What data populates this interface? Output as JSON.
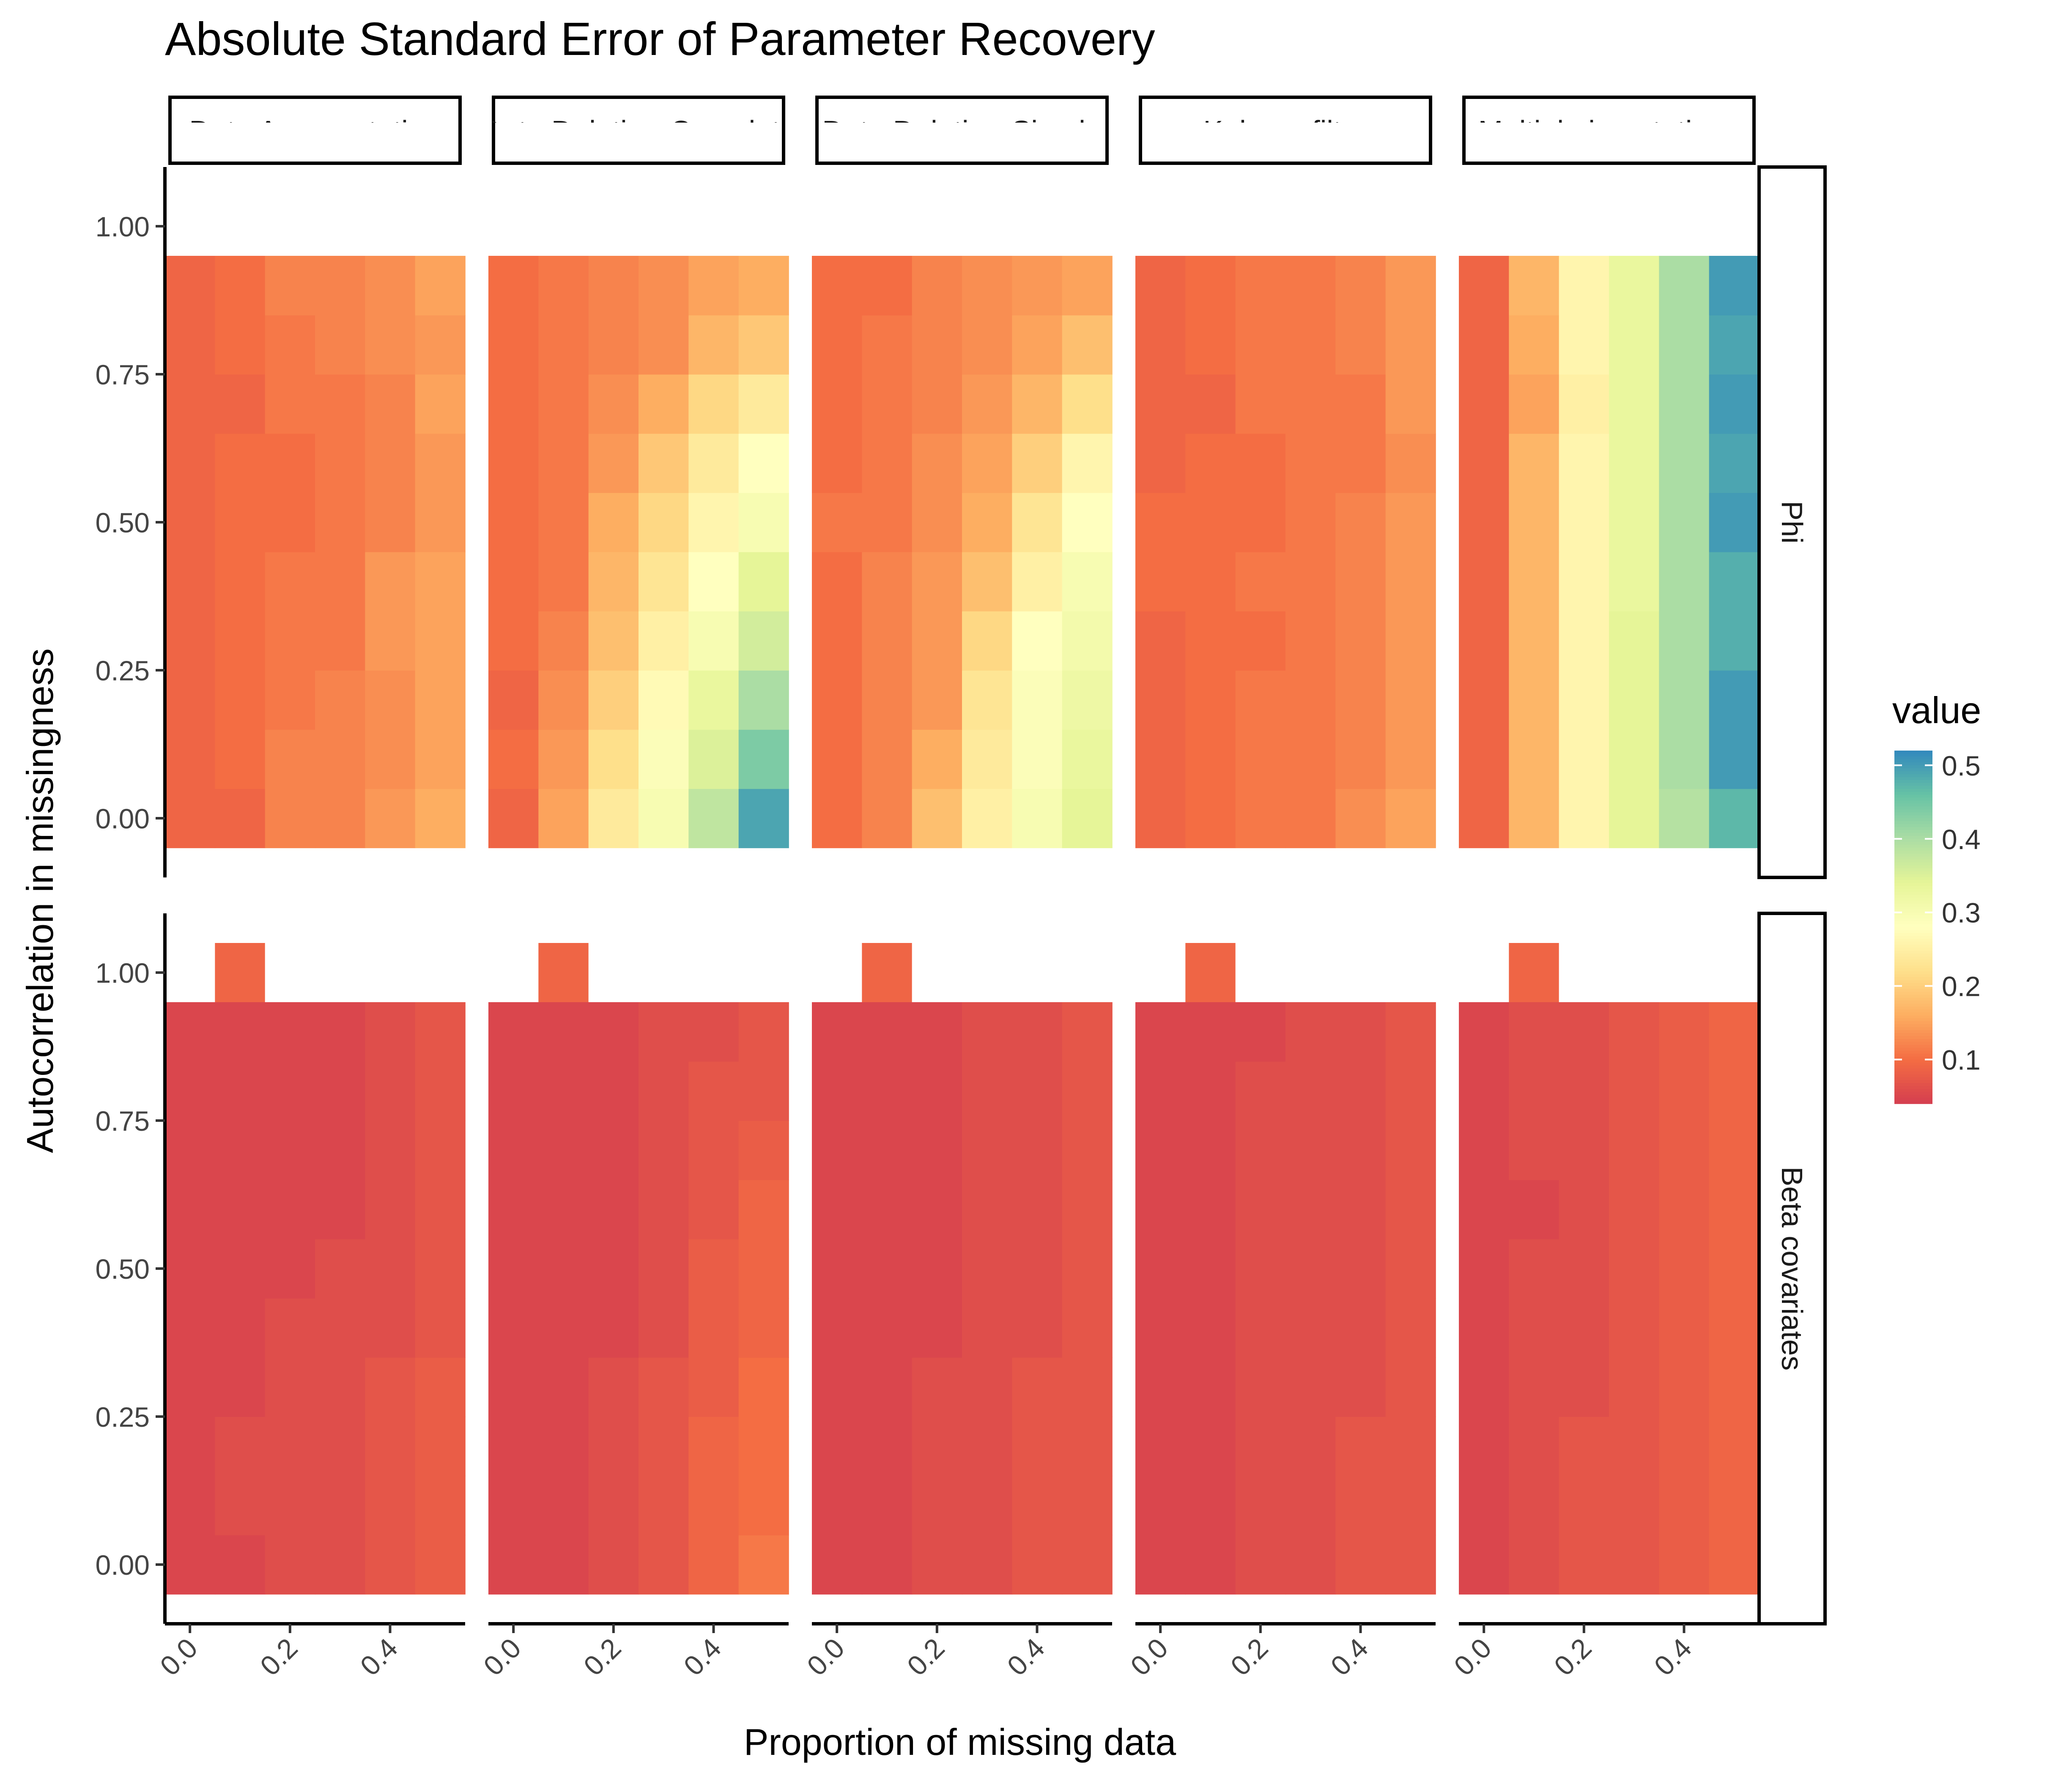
{
  "chart_data": {
    "type": "heatmap",
    "title": "Absolute Standard Error of Parameter Recovery",
    "xlabel": "Proportion of missing data",
    "ylabel": "Autocorrelation in missingness",
    "x_ticks": [
      "0.0",
      "0.2",
      "0.4"
    ],
    "y_ticks": [
      "0.00",
      "0.25",
      "0.50",
      "0.75",
      "1.00"
    ],
    "x_values": [
      0.0,
      0.1,
      0.2,
      0.3,
      0.4,
      0.5
    ],
    "y_values": [
      0.0,
      0.1,
      0.2,
      0.3,
      0.4,
      0.5,
      0.6,
      0.7,
      0.8,
      0.9
    ],
    "extra_cell": {
      "x": 0.1,
      "y": 1.0
    },
    "xlim": [
      -0.05,
      0.55
    ],
    "ylim": [
      -0.1,
      1.1
    ],
    "columns": [
      "Data Augmentation",
      "Data Deletion-Complete",
      "Data Deletion-Simple",
      "Kalman filter",
      "Multiple imputations"
    ],
    "rows": [
      "Phi",
      "Beta covariates"
    ],
    "legend": {
      "title": "value",
      "ticks": [
        "0.1",
        "0.2",
        "0.3",
        "0.4",
        "0.5"
      ],
      "range": [
        0.04,
        0.52
      ],
      "position": "right"
    },
    "colors": {
      "scale": [
        "#d53e4f",
        "#f46d43",
        "#fdae61",
        "#fee08b",
        "#ffffbf",
        "#e6f598",
        "#abdda4",
        "#66c2a5",
        "#3288bd"
      ]
    },
    "cells": {
      "Phi": {
        "Data Augmentation": {
          "extra": null,
          "z": [
            [
              0.09,
              0.09,
              0.12,
              0.12,
              0.14,
              0.16
            ],
            [
              0.09,
              0.1,
              0.12,
              0.12,
              0.13,
              0.15
            ],
            [
              0.09,
              0.1,
              0.11,
              0.12,
              0.13,
              0.15
            ],
            [
              0.09,
              0.1,
              0.11,
              0.11,
              0.14,
              0.15
            ],
            [
              0.09,
              0.1,
              0.11,
              0.11,
              0.14,
              0.15
            ],
            [
              0.09,
              0.1,
              0.1,
              0.11,
              0.12,
              0.14
            ],
            [
              0.09,
              0.1,
              0.1,
              0.11,
              0.12,
              0.14
            ],
            [
              0.09,
              0.09,
              0.11,
              0.11,
              0.12,
              0.15
            ],
            [
              0.09,
              0.1,
              0.11,
              0.12,
              0.13,
              0.14
            ],
            [
              0.09,
              0.1,
              0.12,
              0.12,
              0.13,
              0.15
            ]
          ]
        },
        "Data Deletion-Complete": {
          "extra": null,
          "z": [
            [
              0.09,
              0.15,
              0.24,
              0.3,
              0.38,
              0.49
            ],
            [
              0.1,
              0.14,
              0.22,
              0.29,
              0.35,
              0.44
            ],
            [
              0.09,
              0.13,
              0.2,
              0.27,
              0.33,
              0.4
            ],
            [
              0.1,
              0.12,
              0.18,
              0.25,
              0.3,
              0.36
            ],
            [
              0.1,
              0.11,
              0.17,
              0.23,
              0.28,
              0.34
            ],
            [
              0.1,
              0.11,
              0.16,
              0.21,
              0.26,
              0.3
            ],
            [
              0.1,
              0.11,
              0.14,
              0.19,
              0.24,
              0.28
            ],
            [
              0.1,
              0.11,
              0.13,
              0.16,
              0.21,
              0.24
            ],
            [
              0.1,
              0.11,
              0.12,
              0.13,
              0.17,
              0.19
            ],
            [
              0.1,
              0.11,
              0.12,
              0.13,
              0.15,
              0.16
            ]
          ]
        },
        "Data Deletion-Simple": {
          "extra": null,
          "z": [
            [
              0.1,
              0.12,
              0.18,
              0.25,
              0.3,
              0.34
            ],
            [
              0.1,
              0.12,
              0.16,
              0.24,
              0.29,
              0.33
            ],
            [
              0.1,
              0.12,
              0.14,
              0.23,
              0.29,
              0.32
            ],
            [
              0.1,
              0.12,
              0.14,
              0.21,
              0.28,
              0.31
            ],
            [
              0.1,
              0.12,
              0.14,
              0.18,
              0.25,
              0.3
            ],
            [
              0.11,
              0.11,
              0.13,
              0.16,
              0.23,
              0.28
            ],
            [
              0.1,
              0.11,
              0.13,
              0.15,
              0.2,
              0.26
            ],
            [
              0.1,
              0.11,
              0.12,
              0.14,
              0.17,
              0.22
            ],
            [
              0.1,
              0.11,
              0.12,
              0.13,
              0.15,
              0.18
            ],
            [
              0.1,
              0.1,
              0.12,
              0.13,
              0.14,
              0.15
            ]
          ]
        },
        "Kalman filter": {
          "extra": null,
          "z": [
            [
              0.09,
              0.1,
              0.11,
              0.11,
              0.13,
              0.15
            ],
            [
              0.09,
              0.1,
              0.11,
              0.11,
              0.12,
              0.14
            ],
            [
              0.09,
              0.1,
              0.11,
              0.11,
              0.12,
              0.14
            ],
            [
              0.09,
              0.1,
              0.1,
              0.11,
              0.12,
              0.14
            ],
            [
              0.1,
              0.1,
              0.11,
              0.11,
              0.12,
              0.14
            ],
            [
              0.1,
              0.1,
              0.1,
              0.11,
              0.12,
              0.14
            ],
            [
              0.09,
              0.1,
              0.1,
              0.11,
              0.11,
              0.13
            ],
            [
              0.09,
              0.09,
              0.11,
              0.11,
              0.11,
              0.14
            ],
            [
              0.09,
              0.1,
              0.11,
              0.11,
              0.12,
              0.14
            ],
            [
              0.09,
              0.1,
              0.11,
              0.11,
              0.12,
              0.14
            ]
          ]
        },
        "Multiple imputations": {
          "extra": null,
          "z": [
            [
              0.09,
              0.17,
              0.26,
              0.34,
              0.39,
              0.47
            ],
            [
              0.09,
              0.17,
              0.26,
              0.34,
              0.4,
              0.5
            ],
            [
              0.09,
              0.17,
              0.26,
              0.34,
              0.4,
              0.5
            ],
            [
              0.09,
              0.17,
              0.26,
              0.34,
              0.4,
              0.48
            ],
            [
              0.09,
              0.17,
              0.26,
              0.33,
              0.4,
              0.48
            ],
            [
              0.09,
              0.17,
              0.26,
              0.33,
              0.4,
              0.5
            ],
            [
              0.09,
              0.17,
              0.26,
              0.33,
              0.4,
              0.49
            ],
            [
              0.09,
              0.15,
              0.25,
              0.33,
              0.4,
              0.5
            ],
            [
              0.09,
              0.16,
              0.26,
              0.33,
              0.4,
              0.49
            ],
            [
              0.09,
              0.17,
              0.26,
              0.33,
              0.4,
              0.5
            ]
          ]
        }
      },
      "Beta covariates": {
        "Data Augmentation": {
          "extra": 0.09,
          "z": [
            [
              0.05,
              0.05,
              0.06,
              0.06,
              0.07,
              0.08
            ],
            [
              0.05,
              0.06,
              0.06,
              0.06,
              0.07,
              0.08
            ],
            [
              0.05,
              0.06,
              0.06,
              0.06,
              0.07,
              0.08
            ],
            [
              0.05,
              0.05,
              0.06,
              0.06,
              0.07,
              0.08
            ],
            [
              0.05,
              0.05,
              0.06,
              0.06,
              0.06,
              0.07
            ],
            [
              0.05,
              0.05,
              0.05,
              0.06,
              0.06,
              0.07
            ],
            [
              0.05,
              0.05,
              0.05,
              0.05,
              0.06,
              0.07
            ],
            [
              0.05,
              0.05,
              0.05,
              0.05,
              0.06,
              0.07
            ],
            [
              0.05,
              0.05,
              0.05,
              0.05,
              0.06,
              0.07
            ],
            [
              0.05,
              0.05,
              0.05,
              0.05,
              0.06,
              0.07
            ]
          ]
        },
        "Data Deletion-Complete": {
          "extra": 0.09,
          "z": [
            [
              0.05,
              0.05,
              0.06,
              0.07,
              0.09,
              0.11
            ],
            [
              0.05,
              0.05,
              0.06,
              0.07,
              0.09,
              0.1
            ],
            [
              0.05,
              0.05,
              0.06,
              0.07,
              0.09,
              0.1
            ],
            [
              0.05,
              0.05,
              0.06,
              0.07,
              0.08,
              0.1
            ],
            [
              0.05,
              0.05,
              0.05,
              0.06,
              0.08,
              0.09
            ],
            [
              0.05,
              0.05,
              0.05,
              0.06,
              0.08,
              0.09
            ],
            [
              0.05,
              0.05,
              0.05,
              0.06,
              0.07,
              0.09
            ],
            [
              0.05,
              0.05,
              0.05,
              0.06,
              0.07,
              0.08
            ],
            [
              0.05,
              0.05,
              0.05,
              0.06,
              0.07,
              0.07
            ],
            [
              0.05,
              0.05,
              0.05,
              0.06,
              0.06,
              0.07
            ]
          ]
        },
        "Data Deletion-Simple": {
          "extra": 0.09,
          "z": [
            [
              0.05,
              0.05,
              0.06,
              0.06,
              0.07,
              0.07
            ],
            [
              0.05,
              0.05,
              0.06,
              0.06,
              0.07,
              0.07
            ],
            [
              0.05,
              0.05,
              0.06,
              0.06,
              0.07,
              0.07
            ],
            [
              0.05,
              0.05,
              0.06,
              0.06,
              0.07,
              0.07
            ],
            [
              0.05,
              0.05,
              0.05,
              0.06,
              0.06,
              0.07
            ],
            [
              0.05,
              0.05,
              0.05,
              0.06,
              0.06,
              0.07
            ],
            [
              0.05,
              0.05,
              0.05,
              0.06,
              0.06,
              0.07
            ],
            [
              0.05,
              0.05,
              0.05,
              0.06,
              0.06,
              0.07
            ],
            [
              0.05,
              0.05,
              0.05,
              0.06,
              0.06,
              0.07
            ],
            [
              0.05,
              0.05,
              0.05,
              0.06,
              0.06,
              0.07
            ]
          ]
        },
        "Kalman filter": {
          "extra": 0.09,
          "z": [
            [
              0.05,
              0.05,
              0.06,
              0.06,
              0.07,
              0.07
            ],
            [
              0.05,
              0.05,
              0.06,
              0.06,
              0.07,
              0.07
            ],
            [
              0.05,
              0.05,
              0.06,
              0.06,
              0.07,
              0.07
            ],
            [
              0.05,
              0.05,
              0.06,
              0.06,
              0.06,
              0.07
            ],
            [
              0.05,
              0.05,
              0.06,
              0.06,
              0.06,
              0.07
            ],
            [
              0.05,
              0.05,
              0.06,
              0.06,
              0.06,
              0.07
            ],
            [
              0.05,
              0.05,
              0.06,
              0.06,
              0.06,
              0.07
            ],
            [
              0.05,
              0.05,
              0.06,
              0.06,
              0.06,
              0.07
            ],
            [
              0.05,
              0.05,
              0.06,
              0.06,
              0.06,
              0.07
            ],
            [
              0.05,
              0.05,
              0.05,
              0.06,
              0.06,
              0.07
            ]
          ]
        },
        "Multiple imputations": {
          "extra": 0.09,
          "z": [
            [
              0.05,
              0.06,
              0.07,
              0.07,
              0.08,
              0.09
            ],
            [
              0.05,
              0.06,
              0.07,
              0.07,
              0.08,
              0.09
            ],
            [
              0.05,
              0.06,
              0.07,
              0.07,
              0.08,
              0.09
            ],
            [
              0.05,
              0.06,
              0.06,
              0.07,
              0.08,
              0.09
            ],
            [
              0.05,
              0.06,
              0.06,
              0.07,
              0.08,
              0.09
            ],
            [
              0.05,
              0.06,
              0.06,
              0.07,
              0.08,
              0.09
            ],
            [
              0.05,
              0.05,
              0.06,
              0.07,
              0.08,
              0.09
            ],
            [
              0.05,
              0.06,
              0.06,
              0.07,
              0.08,
              0.09
            ],
            [
              0.05,
              0.06,
              0.06,
              0.07,
              0.08,
              0.09
            ],
            [
              0.05,
              0.06,
              0.06,
              0.07,
              0.08,
              0.09
            ]
          ]
        }
      }
    }
  }
}
